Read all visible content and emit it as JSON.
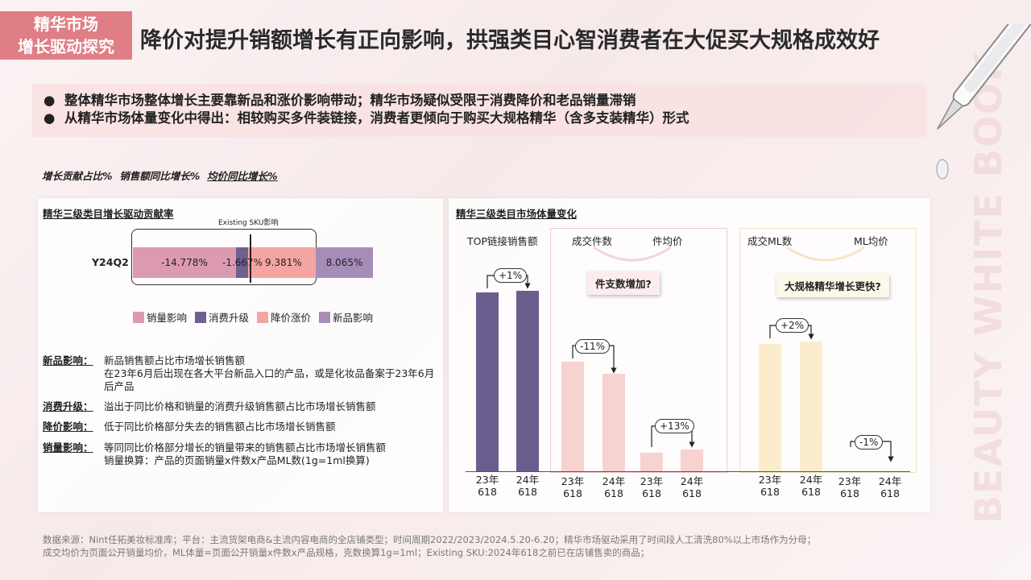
{
  "header": {
    "tag_line1": "精华市场",
    "tag_line2": "增长驱动探究",
    "title": "降价对提升销额增长有正向影响，拱强类目心智消费者在大促买大规格成效好"
  },
  "bullets": [
    "整体精华市场整体增长主要靠新品和涨价影响带动；精华市场疑似受限于消费降价和老品销量滞销",
    "从精华市场体量变化中得出：相较购买多件装链接，消费者更倾向于购买大规格精华（含多支装精华）形式"
  ],
  "legend_line": {
    "part1": "增长贡献占比%",
    "part2": "销售额同比增长%",
    "part3": "均价同比增长%"
  },
  "left_panel": {
    "title": "精华三级类目增长驱动贡献率",
    "existing_label": "Existing SKU影响",
    "row_label": "Y24Q2",
    "segments": [
      {
        "name": "销量影响",
        "value": -14.778,
        "label": "-14.778%",
        "color": "#dc9ab2"
      },
      {
        "name": "消费升级",
        "value": -1.667,
        "label": "-1.667%",
        "color": "#6f5f93"
      },
      {
        "name": "降价涨价",
        "value": 9.381,
        "label": "9.381%",
        "color": "#f4a5a2"
      },
      {
        "name": "新品影响",
        "value": 8.065,
        "label": "8.065%",
        "color": "#a68db8"
      }
    ],
    "legend": [
      "销量影响",
      "消费升级",
      "降价涨价",
      "新品影响"
    ],
    "definitions": [
      {
        "key": "新品影响：",
        "lines": [
          "新品销售额占比市场增长销售额",
          "在23年6月后出现在各大平台新品入口的产品，或是化妆品备案于23年6月后产品"
        ]
      },
      {
        "key": "消费升级：",
        "lines": [
          "溢出于同比价格和销量的消费升级销售额占比市场增长销售额"
        ]
      },
      {
        "key": "降价影响：",
        "lines": [
          "低于同比价格部分失去的销售额占比市场增长销售额"
        ]
      },
      {
        "key": "销量影响：",
        "lines": [
          "等同同比价格部分增长的销量带来的销售额占比市场增长销售额",
          "销量换算：产品的页面销量x件数x产品ML数(1g=1ml换算)"
        ]
      }
    ]
  },
  "right_panel": {
    "title": "精华三级类目市场体量变化",
    "group1": {
      "title": "TOP链接销售额",
      "change": "+1%",
      "values": [
        100,
        101
      ],
      "color": "#6b5d8e"
    },
    "group2": {
      "title1": "成交件数",
      "title2": "件均价",
      "callout": "件支数增加?",
      "a": {
        "change": "-11%",
        "values": [
          100,
          89
        ],
        "color": "#f8d1d1"
      },
      "b": {
        "change": "+13%",
        "values": [
          18,
          20.3
        ],
        "color": "#f8d1d1"
      }
    },
    "group3": {
      "title1": "成交ML数",
      "title2": "ML均价",
      "callout": "大规格精华增长更快?",
      "a": {
        "change": "+2%",
        "values": [
          100,
          102
        ],
        "color": "#fbedcc"
      },
      "b": {
        "change": "-1%",
        "values": [
          0,
          0
        ],
        "color": "#fbedcc"
      }
    },
    "x_label_top": [
      "23年",
      "24年"
    ],
    "x_label_bottom": [
      "618",
      "618"
    ]
  },
  "footnote": {
    "line1": "数据来源：Nint任拓美妆标准库；平台：主流货架电商&主流内容电商的全店铺类型；时间周期2022/2023/2024.5.20-6.20；精华市场驱动采用了时间段人工清洗80%以上市场作为分母；",
    "line2": "成交均价为页面公开销量均价，ML体量=页面公开销量x件数x产品规格，克数换算1g=1ml；Existing SKU:2024年618之前已在店铺售卖的商品；"
  },
  "watermark": "BEAUTY WHITE BOOK",
  "colors": {
    "tag": "#e07e85",
    "bullet_bg": "#f9e0e0"
  }
}
